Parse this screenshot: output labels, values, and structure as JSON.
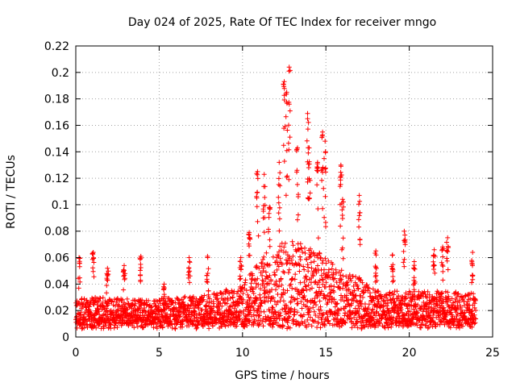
{
  "chart_data": {
    "type": "scatter",
    "title": "Day 024 of 2025, Rate Of TEC Index for receiver mngo",
    "xlabel": "GPS time / hours",
    "ylabel": "ROTI / TECUs",
    "xlim": [
      0,
      25
    ],
    "ylim": [
      0,
      0.22
    ],
    "xticks": [
      0,
      5,
      10,
      15,
      20,
      25
    ],
    "xtick_labels": [
      "0",
      "5",
      "10",
      "15",
      "20",
      "25"
    ],
    "yticks": [
      0,
      0.02,
      0.04,
      0.06,
      0.08,
      0.1,
      0.12,
      0.14,
      0.16,
      0.18,
      0.2,
      0.22
    ],
    "ytick_labels": [
      "0",
      "0.02",
      "0.04",
      "0.06",
      "0.08",
      "0.1",
      "0.12",
      "0.14",
      "0.16",
      "0.18",
      "0.2",
      "0.22"
    ],
    "grid": true,
    "marker": "+",
    "marker_color": "#ff0000",
    "x_range": [
      0,
      24
    ],
    "series": [
      {
        "name": "ROTI",
        "description": "dense points every ~30 s; typical band 0.005-0.04, elevated 10.5-17 h",
        "baseline_envelope": [
          [
            0,
            0.03
          ],
          [
            2,
            0.03
          ],
          [
            4,
            0.028
          ],
          [
            6,
            0.03
          ],
          [
            8,
            0.032
          ],
          [
            10,
            0.04
          ],
          [
            11,
            0.06
          ],
          [
            12,
            0.07
          ],
          [
            13,
            0.075
          ],
          [
            14,
            0.07
          ],
          [
            15,
            0.06
          ],
          [
            16,
            0.05
          ],
          [
            17,
            0.045
          ],
          [
            18,
            0.035
          ],
          [
            20,
            0.035
          ],
          [
            22,
            0.035
          ],
          [
            24,
            0.033
          ]
        ],
        "peaks": [
          [
            0.2,
            0.06
          ],
          [
            1.05,
            0.064
          ],
          [
            1.9,
            0.052
          ],
          [
            2.9,
            0.054
          ],
          [
            3.9,
            0.061
          ],
          [
            5.3,
            0.04
          ],
          [
            6.8,
            0.06
          ],
          [
            7.9,
            0.061
          ],
          [
            9.9,
            0.06
          ],
          [
            10.4,
            0.079
          ],
          [
            10.9,
            0.125
          ],
          [
            11.3,
            0.123
          ],
          [
            11.6,
            0.098
          ],
          [
            12.2,
            0.132
          ],
          [
            12.5,
            0.193
          ],
          [
            12.65,
            0.185
          ],
          [
            12.8,
            0.204
          ],
          [
            13.3,
            0.143
          ],
          [
            13.9,
            0.169
          ],
          [
            14.0,
            0.143
          ],
          [
            14.5,
            0.132
          ],
          [
            14.8,
            0.155
          ],
          [
            14.95,
            0.148
          ],
          [
            15.9,
            0.13
          ],
          [
            16.0,
            0.104
          ],
          [
            17.0,
            0.107
          ],
          [
            18.0,
            0.065
          ],
          [
            19.0,
            0.062
          ],
          [
            19.7,
            0.08
          ],
          [
            20.3,
            0.057
          ],
          [
            21.5,
            0.066
          ],
          [
            22.0,
            0.068
          ],
          [
            22.3,
            0.075
          ],
          [
            23.8,
            0.064
          ]
        ]
      }
    ]
  }
}
